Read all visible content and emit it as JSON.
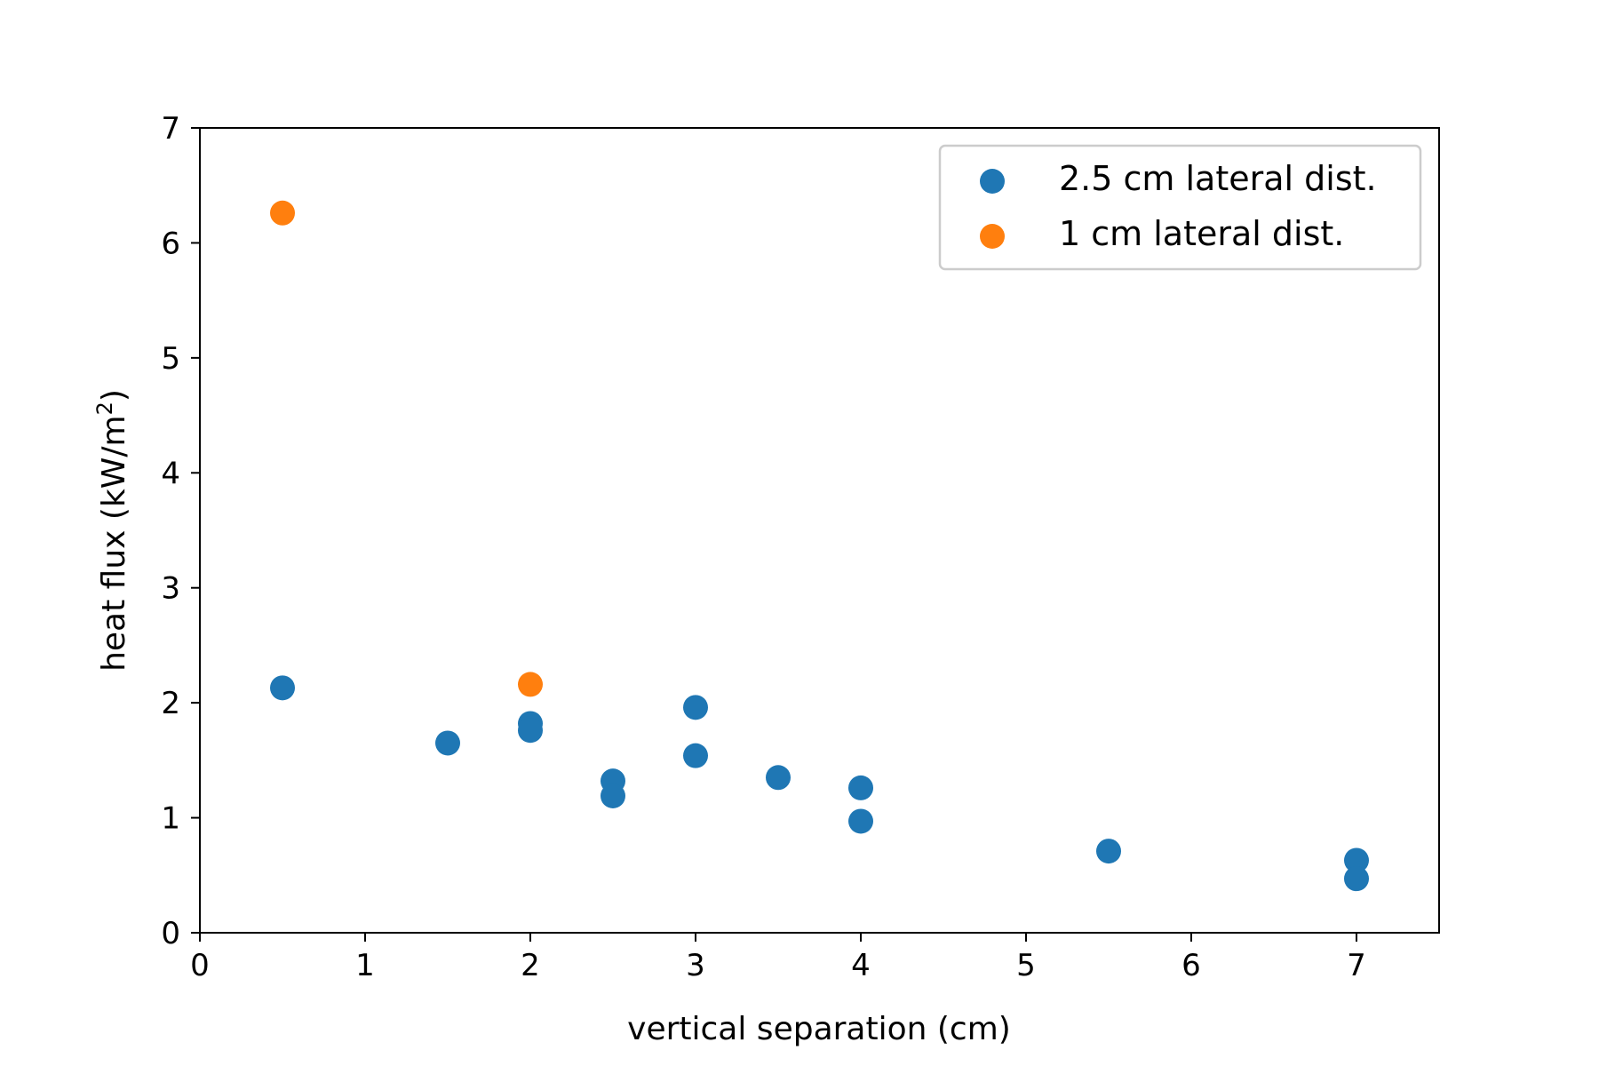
{
  "chart_data": {
    "type": "scatter",
    "title": "",
    "xlabel": "vertical separation (cm)",
    "ylabel_main": "heat flux (kW/m",
    "ylabel_sup": "2",
    "ylabel_close": ")",
    "xlim": [
      0,
      7.5
    ],
    "ylim": [
      0,
      7
    ],
    "xticks": [
      0,
      1,
      2,
      3,
      4,
      5,
      6,
      7
    ],
    "yticks": [
      0,
      1,
      2,
      3,
      4,
      5,
      6,
      7
    ],
    "grid": false,
    "legend_position": "top-right",
    "series": [
      {
        "name": "2.5 cm lateral dist.",
        "color": "#1f77b4",
        "points": [
          {
            "x": 0.5,
            "y": 2.13
          },
          {
            "x": 1.5,
            "y": 1.65
          },
          {
            "x": 2.0,
            "y": 1.82
          },
          {
            "x": 2.0,
            "y": 1.76
          },
          {
            "x": 2.5,
            "y": 1.32
          },
          {
            "x": 2.5,
            "y": 1.19
          },
          {
            "x": 3.0,
            "y": 1.96
          },
          {
            "x": 3.0,
            "y": 1.54
          },
          {
            "x": 3.5,
            "y": 1.35
          },
          {
            "x": 4.0,
            "y": 1.26
          },
          {
            "x": 4.0,
            "y": 0.97
          },
          {
            "x": 5.5,
            "y": 0.71
          },
          {
            "x": 7.0,
            "y": 0.63
          },
          {
            "x": 7.0,
            "y": 0.47
          }
        ]
      },
      {
        "name": "1 cm lateral dist.",
        "color": "#ff7f0e",
        "points": [
          {
            "x": 0.5,
            "y": 6.26
          },
          {
            "x": 2.0,
            "y": 2.16
          }
        ]
      }
    ]
  }
}
